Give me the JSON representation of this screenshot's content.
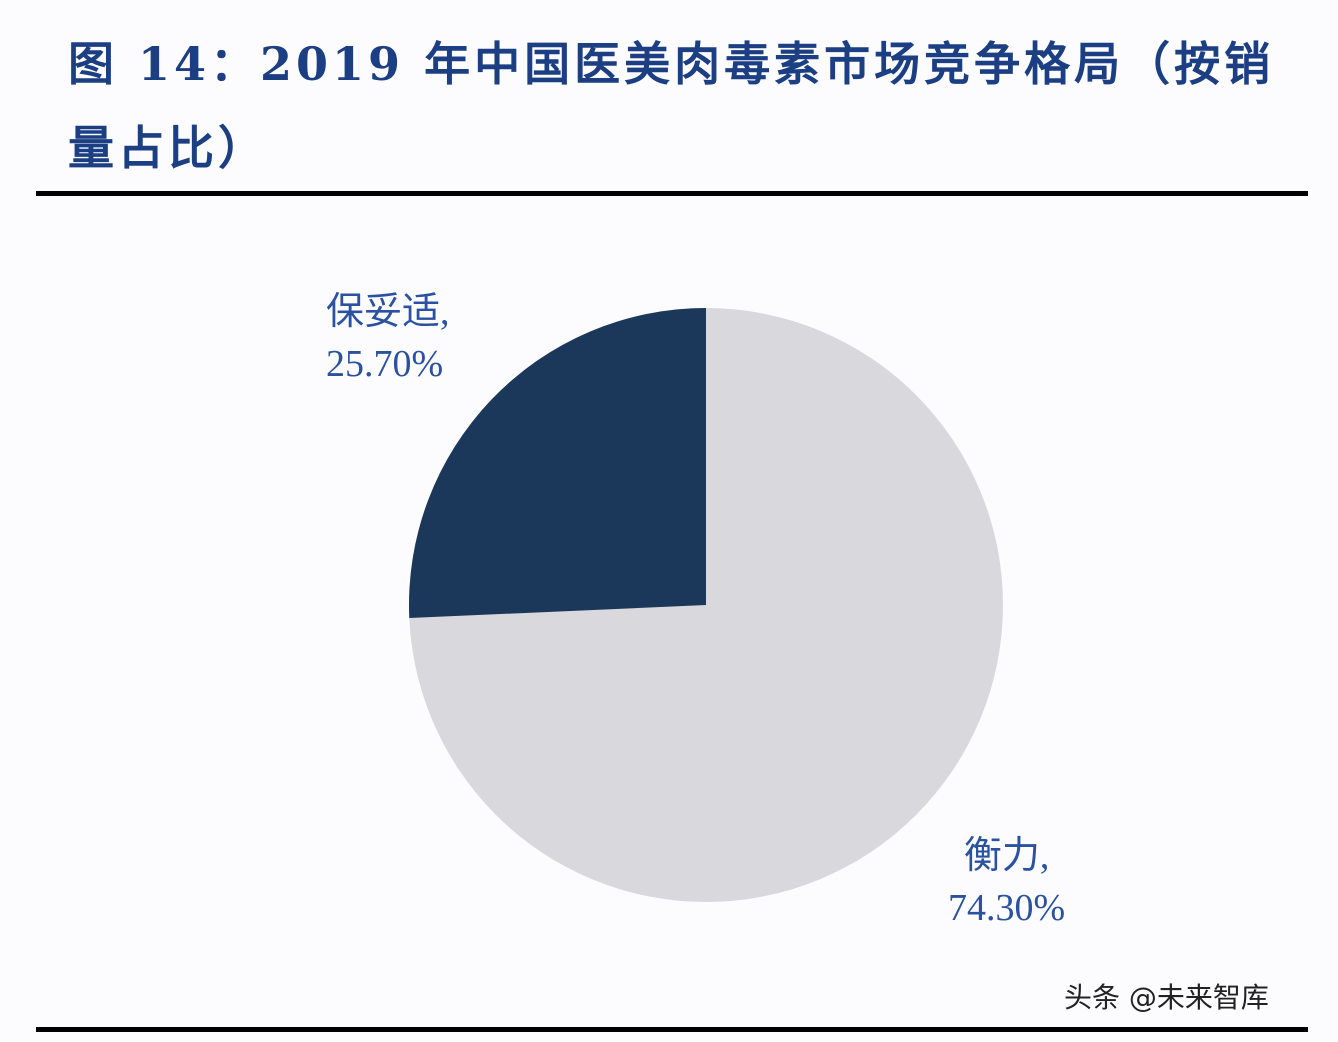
{
  "header": {
    "title": "图 14：2019 年中国医美肉毒素市场竞争格局（按销量占比）"
  },
  "chart_data": {
    "type": "pie",
    "title": "图 14：2019 年中国医美肉毒素市场竞争格局（按销量占比）",
    "categories": [
      "保妥适",
      "衡力"
    ],
    "values": [
      25.7,
      74.3
    ],
    "unit": "%",
    "colors": [
      "#1b3759",
      "#d9d8dc"
    ],
    "labels": [
      "保妥适, 25.70%",
      "衡力, 74.30%"
    ],
    "legend": "none"
  },
  "labels": {
    "botox_name": "保妥适,",
    "botox_value": "25.70%",
    "hengli_name": "衡力,",
    "hengli_value": "74.30%"
  },
  "watermark": "头条 @未来智库"
}
